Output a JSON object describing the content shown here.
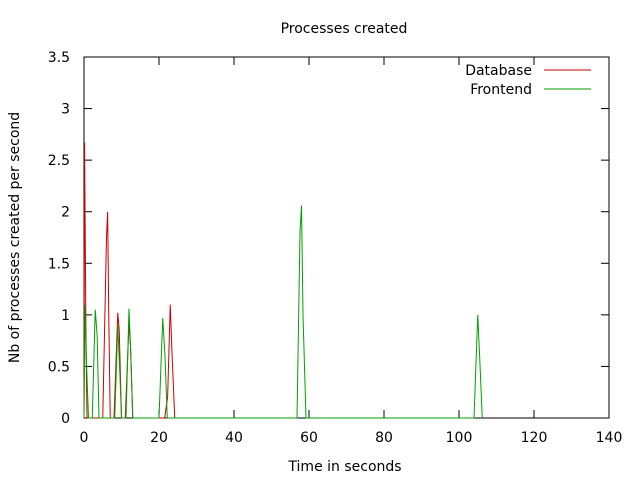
{
  "chart_data": {
    "type": "line",
    "title": "Processes created",
    "xlabel": "Time in seconds",
    "ylabel": "Nb of processes created per second",
    "xlim": [
      0,
      140
    ],
    "ylim": [
      0,
      3.5
    ],
    "x_ticks": [
      0,
      20,
      40,
      60,
      80,
      100,
      120,
      140
    ],
    "x_tick_labels": [
      "0",
      "20",
      "40",
      "60",
      "80",
      "100",
      "120",
      "140"
    ],
    "y_ticks": [
      0,
      0.5,
      1,
      1.5,
      2,
      2.5,
      3,
      3.5
    ],
    "y_tick_labels": [
      "0",
      "0.5",
      "1",
      "1.5",
      "2",
      "2.5",
      "3",
      "3.5"
    ],
    "grid": false,
    "legend_position": "top-right",
    "series": [
      {
        "name": "Database",
        "color": "#cc0000",
        "points": [
          [
            0,
            0
          ],
          [
            0.15,
            2.67
          ],
          [
            0.3,
            1.9
          ],
          [
            0.5,
            0.9
          ],
          [
            0.8,
            0
          ],
          [
            5.0,
            0
          ],
          [
            6.0,
            1.75
          ],
          [
            6.3,
            2.0
          ],
          [
            6.6,
            1.0
          ],
          [
            7.0,
            0
          ],
          [
            8.0,
            0
          ],
          [
            9.0,
            1.02
          ],
          [
            9.4,
            0.85
          ],
          [
            10.0,
            0
          ],
          [
            11.0,
            0
          ],
          [
            12.0,
            0.92
          ],
          [
            12.4,
            0.7
          ],
          [
            13.0,
            0
          ],
          [
            21.5,
            0
          ],
          [
            22.3,
            0.2
          ],
          [
            23.0,
            1.1
          ],
          [
            23.5,
            0.6
          ],
          [
            24.2,
            0
          ]
        ]
      },
      {
        "name": "Frontend",
        "color": "#00a000",
        "points": [
          [
            0,
            0
          ],
          [
            0.3,
            1.1
          ],
          [
            0.6,
            0.6
          ],
          [
            1.2,
            0
          ],
          [
            2.2,
            0
          ],
          [
            3.0,
            1.05
          ],
          [
            3.5,
            0.8
          ],
          [
            4.0,
            0
          ],
          [
            8.2,
            0
          ],
          [
            9.0,
            0.9
          ],
          [
            9.6,
            0.4
          ],
          [
            10.0,
            0
          ],
          [
            11.2,
            0
          ],
          [
            12.0,
            1.06
          ],
          [
            12.5,
            0.6
          ],
          [
            13.0,
            0
          ],
          [
            20.0,
            0
          ],
          [
            21.0,
            0.97
          ],
          [
            21.6,
            0.6
          ],
          [
            22.2,
            0
          ],
          [
            56.8,
            0
          ],
          [
            57.6,
            1.8
          ],
          [
            58.0,
            2.06
          ],
          [
            58.4,
            1.0
          ],
          [
            59.2,
            0
          ],
          [
            104.0,
            0
          ],
          [
            105.0,
            1.0
          ],
          [
            105.5,
            0.6
          ],
          [
            106.2,
            0
          ]
        ]
      }
    ]
  }
}
